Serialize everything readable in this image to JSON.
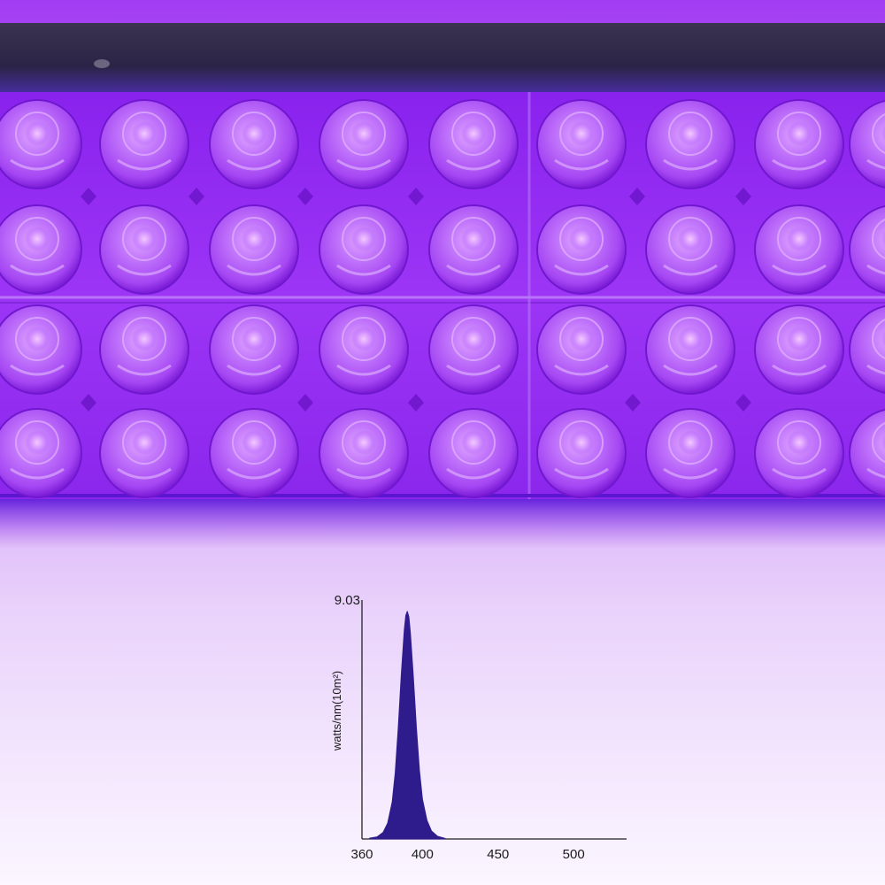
{
  "colors": {
    "led_glow": "#9b2cf4",
    "housing": "#2a2148",
    "spectrum_fill": "#2e1c8c",
    "axis": "#222222"
  },
  "photo": {
    "subject": "uv-led-bar",
    "led_rows": 4,
    "leds_per_row_visible": 8
  },
  "chart_data": {
    "type": "area",
    "xlabel": "",
    "ylabel": "watts/nm(10m²)",
    "y_max_label": "9.03",
    "xlim": [
      360,
      535
    ],
    "ylim": [
      0,
      9.03
    ],
    "x_ticks": [
      {
        "value": 360,
        "label": "360"
      },
      {
        "value": 400,
        "label": "400"
      },
      {
        "value": 450,
        "label": "450"
      },
      {
        "value": 500,
        "label": "500"
      }
    ],
    "grid": false,
    "series": [
      {
        "peak_nm": 390,
        "x": [
          365,
          370,
          374,
          377,
          380,
          382,
          384,
          386,
          388,
          389,
          390,
          391,
          392,
          394,
          396,
          398,
          400,
          403,
          406,
          410,
          415
        ],
        "y": [
          0.03,
          0.08,
          0.25,
          0.6,
          1.4,
          2.5,
          4.2,
          6.2,
          7.9,
          8.45,
          8.6,
          8.4,
          7.8,
          6.1,
          4.2,
          2.6,
          1.5,
          0.7,
          0.3,
          0.1,
          0.02
        ]
      }
    ]
  }
}
